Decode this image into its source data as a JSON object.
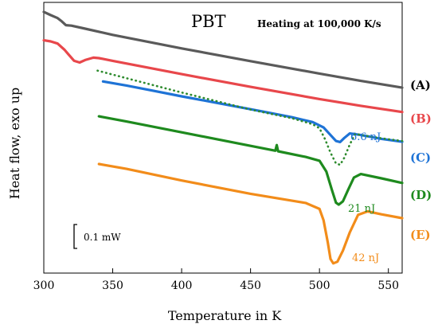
{
  "chart_data": {
    "type": "line",
    "title": "PBT",
    "note": "Heating at 100,000 K/s",
    "xlabel": "Temperature in K",
    "ylabel": "Heat flow, exo up",
    "xlim": [
      300,
      560
    ],
    "x_ticks": [
      300,
      350,
      400,
      450,
      500,
      550
    ],
    "ylim": [
      0,
      100
    ],
    "y_units": "arbitrary (normalized vertical offset)",
    "grid": false,
    "scale_bar": {
      "label": "0.1 mW"
    },
    "series": [
      {
        "name": "(A)",
        "color": "#5a5a5a",
        "style": "solid",
        "points": [
          [
            300,
            96.5
          ],
          [
            305,
            95.3
          ],
          [
            310,
            94.2
          ],
          [
            313,
            93.0
          ],
          [
            316,
            91.6
          ],
          [
            320,
            91.4
          ],
          [
            330,
            90.3
          ],
          [
            350,
            88.0
          ],
          [
            400,
            83.0
          ],
          [
            450,
            78.3
          ],
          [
            500,
            73.7
          ],
          [
            530,
            71.0
          ],
          [
            560,
            68.5
          ]
        ]
      },
      {
        "name": "(B)",
        "color": "#e8474b",
        "style": "solid",
        "points": [
          [
            300,
            86.0
          ],
          [
            305,
            85.6
          ],
          [
            310,
            84.8
          ],
          [
            315,
            82.5
          ],
          [
            318,
            80.7
          ],
          [
            322,
            78.4
          ],
          [
            326,
            77.8
          ],
          [
            330,
            78.7
          ],
          [
            336,
            79.6
          ],
          [
            340,
            79.4
          ],
          [
            350,
            78.4
          ],
          [
            400,
            73.5
          ],
          [
            450,
            68.8
          ],
          [
            500,
            64.3
          ],
          [
            530,
            61.8
          ],
          [
            560,
            59.5
          ]
        ]
      },
      {
        "name": "(C)",
        "color": "#1e73d6",
        "style": "solid",
        "annotation": "6.6 nJ",
        "points": [
          [
            343,
            70.8
          ],
          [
            360,
            69.3
          ],
          [
            380,
            67.3
          ],
          [
            400,
            65.3
          ],
          [
            420,
            63.4
          ],
          [
            440,
            61.5
          ],
          [
            460,
            59.6
          ],
          [
            480,
            57.6
          ],
          [
            495,
            55.8
          ],
          [
            503,
            53.8
          ],
          [
            508,
            51.0
          ],
          [
            512,
            48.8
          ],
          [
            515,
            48.4
          ],
          [
            518,
            49.9
          ],
          [
            522,
            51.6
          ],
          [
            530,
            51.0
          ],
          [
            545,
            49.6
          ],
          [
            560,
            48.5
          ]
        ]
      },
      {
        "name": "(C)",
        "color": "#2e8b2e",
        "style": "dotted",
        "points": [
          [
            339,
            74.8
          ],
          [
            360,
            72.0
          ],
          [
            400,
            66.7
          ],
          [
            450,
            60.4
          ],
          [
            480,
            57.2
          ],
          [
            495,
            55.0
          ],
          [
            500,
            53.5
          ],
          [
            504,
            49.5
          ],
          [
            508,
            44.5
          ],
          [
            512,
            40.5
          ],
          [
            515,
            40.0
          ],
          [
            518,
            42.6
          ],
          [
            522,
            47.5
          ],
          [
            526,
            51.5
          ],
          [
            530,
            51.0
          ],
          [
            545,
            49.8
          ],
          [
            560,
            48.8
          ]
        ]
      },
      {
        "name": "(D)",
        "color": "#1e8a1e",
        "style": "solid",
        "annotation": "21 nJ",
        "points": [
          [
            340,
            57.9
          ],
          [
            360,
            56.0
          ],
          [
            400,
            52.0
          ],
          [
            450,
            47.0
          ],
          [
            468,
            45.2
          ],
          [
            469,
            47.3
          ],
          [
            470,
            45.0
          ],
          [
            490,
            42.9
          ],
          [
            500,
            41.5
          ],
          [
            505,
            37.5
          ],
          [
            509,
            30.8
          ],
          [
            512,
            26.0
          ],
          [
            514,
            25.3
          ],
          [
            517,
            26.5
          ],
          [
            521,
            31.0
          ],
          [
            525,
            35.3
          ],
          [
            530,
            36.6
          ],
          [
            545,
            35.0
          ],
          [
            560,
            33.3
          ]
        ]
      },
      {
        "name": "(E)",
        "color": "#f28c1a",
        "style": "solid",
        "annotation": "42 nJ",
        "points": [
          [
            340,
            40.3
          ],
          [
            360,
            38.5
          ],
          [
            400,
            34.2
          ],
          [
            450,
            29.3
          ],
          [
            490,
            25.9
          ],
          [
            500,
            23.7
          ],
          [
            503,
            19.5
          ],
          [
            506,
            11.5
          ],
          [
            508,
            5.2
          ],
          [
            510,
            3.6
          ],
          [
            513,
            4.2
          ],
          [
            517,
            8.3
          ],
          [
            522,
            15.0
          ],
          [
            528,
            21.5
          ],
          [
            535,
            22.8
          ],
          [
            545,
            21.7
          ],
          [
            560,
            20.3
          ]
        ]
      }
    ]
  }
}
